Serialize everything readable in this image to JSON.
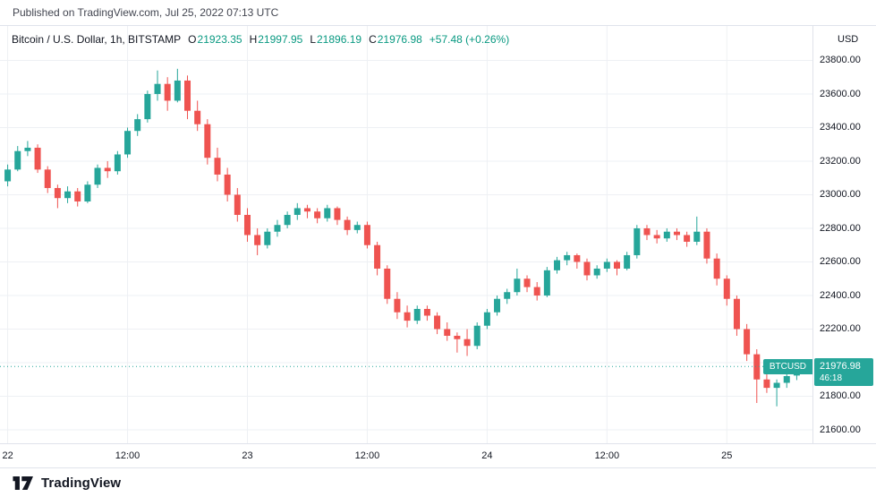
{
  "published": "Published on TradingView.com, Jul 25, 2022 07:13 UTC",
  "brand": "TradingView",
  "axis_currency": "USD",
  "legend": {
    "title": "Bitcoin / U.S. Dollar, 1h, BITSTAMP",
    "ohlc": [
      {
        "label": "O",
        "value": "21923.35"
      },
      {
        "label": "H",
        "value": "21997.95"
      },
      {
        "label": "L",
        "value": "21896.19"
      },
      {
        "label": "C",
        "value": "21976.98"
      }
    ],
    "change": "+57.48 (+0.26%)"
  },
  "price_label": {
    "symbol": "BTCUSD",
    "price": "21976.98",
    "countdown": "46:18"
  },
  "colors": {
    "up": "#26a69a",
    "down": "#ef5350",
    "up_text": "#089981",
    "grid": "#eef0f4",
    "border": "#e0e3eb",
    "text": "#131722"
  },
  "chart_data": {
    "type": "candlestick",
    "title": "Bitcoin / U.S. Dollar",
    "symbol": "BTCUSD",
    "exchange": "BITSTAMP",
    "interval": "1h",
    "last_price": 21976.98,
    "last_candle": {
      "open": 21923.35,
      "high": 21997.95,
      "low": 21896.19,
      "close": 21976.98,
      "change": 57.48,
      "change_pct": 0.26
    },
    "ylim": [
      21520,
      24005
    ],
    "y_ticks": [
      23800,
      23600,
      23400,
      23200,
      23000,
      22800,
      22600,
      22400,
      22200,
      22000,
      21800,
      21600
    ],
    "x_ticks": [
      {
        "index": 0,
        "label": "22",
        "major": true
      },
      {
        "index": 12,
        "label": "12:00",
        "major": false
      },
      {
        "index": 24,
        "label": "23",
        "major": true
      },
      {
        "index": 36,
        "label": "12:00",
        "major": false
      },
      {
        "index": 48,
        "label": "24",
        "major": true
      },
      {
        "index": 60,
        "label": "12:00",
        "major": false
      },
      {
        "index": 72,
        "label": "25",
        "major": true
      }
    ],
    "candles": [
      [
        23080,
        23180,
        23050,
        23150
      ],
      [
        23150,
        23290,
        23140,
        23260
      ],
      [
        23260,
        23320,
        23230,
        23280
      ],
      [
        23280,
        23300,
        23130,
        23150
      ],
      [
        23150,
        23170,
        23010,
        23040
      ],
      [
        23040,
        23060,
        22920,
        22980
      ],
      [
        22980,
        23050,
        22950,
        23020
      ],
      [
        23020,
        23040,
        22930,
        22960
      ],
      [
        22960,
        23080,
        22950,
        23060
      ],
      [
        23060,
        23180,
        23040,
        23160
      ],
      [
        23160,
        23200,
        23100,
        23140
      ],
      [
        23140,
        23260,
        23120,
        23240
      ],
      [
        23240,
        23400,
        23220,
        23380
      ],
      [
        23380,
        23480,
        23350,
        23450
      ],
      [
        23450,
        23620,
        23430,
        23600
      ],
      [
        23600,
        23740,
        23560,
        23660
      ],
      [
        23660,
        23700,
        23500,
        23560
      ],
      [
        23560,
        23750,
        23550,
        23680
      ],
      [
        23680,
        23710,
        23450,
        23500
      ],
      [
        23500,
        23560,
        23380,
        23420
      ],
      [
        23420,
        23450,
        23180,
        23220
      ],
      [
        23220,
        23280,
        23080,
        23120
      ],
      [
        23120,
        23160,
        22960,
        23000
      ],
      [
        23000,
        23040,
        22840,
        22880
      ],
      [
        22880,
        22920,
        22720,
        22760
      ],
      [
        22760,
        22800,
        22640,
        22700
      ],
      [
        22700,
        22800,
        22680,
        22780
      ],
      [
        22780,
        22850,
        22750,
        22820
      ],
      [
        22820,
        22900,
        22800,
        22880
      ],
      [
        22880,
        22950,
        22850,
        22920
      ],
      [
        22920,
        22940,
        22860,
        22900
      ],
      [
        22900,
        22920,
        22830,
        22860
      ],
      [
        22860,
        22940,
        22840,
        22920
      ],
      [
        22920,
        22930,
        22820,
        22850
      ],
      [
        22850,
        22870,
        22760,
        22790
      ],
      [
        22790,
        22840,
        22770,
        22820
      ],
      [
        22820,
        22840,
        22680,
        22700
      ],
      [
        22700,
        22720,
        22520,
        22560
      ],
      [
        22560,
        22580,
        22350,
        22380
      ],
      [
        22380,
        22420,
        22260,
        22300
      ],
      [
        22300,
        22340,
        22210,
        22250
      ],
      [
        22250,
        22340,
        22230,
        22320
      ],
      [
        22320,
        22340,
        22250,
        22280
      ],
      [
        22280,
        22300,
        22170,
        22200
      ],
      [
        22200,
        22240,
        22130,
        22160
      ],
      [
        22160,
        22180,
        22060,
        22140
      ],
      [
        22140,
        22200,
        22040,
        22100
      ],
      [
        22100,
        22240,
        22080,
        22220
      ],
      [
        22220,
        22320,
        22200,
        22300
      ],
      [
        22300,
        22400,
        22280,
        22380
      ],
      [
        22380,
        22440,
        22350,
        22420
      ],
      [
        22420,
        22560,
        22400,
        22500
      ],
      [
        22500,
        22520,
        22420,
        22450
      ],
      [
        22450,
        22480,
        22370,
        22400
      ],
      [
        22400,
        22570,
        22390,
        22550
      ],
      [
        22550,
        22630,
        22530,
        22610
      ],
      [
        22610,
        22660,
        22580,
        22640
      ],
      [
        22640,
        22650,
        22560,
        22600
      ],
      [
        22600,
        22620,
        22490,
        22520
      ],
      [
        22520,
        22580,
        22500,
        22560
      ],
      [
        22560,
        22620,
        22540,
        22600
      ],
      [
        22600,
        22610,
        22520,
        22560
      ],
      [
        22560,
        22660,
        22550,
        22640
      ],
      [
        22640,
        22820,
        22620,
        22800
      ],
      [
        22800,
        22820,
        22730,
        22760
      ],
      [
        22760,
        22790,
        22710,
        22740
      ],
      [
        22740,
        22800,
        22720,
        22780
      ],
      [
        22780,
        22800,
        22730,
        22760
      ],
      [
        22760,
        22780,
        22690,
        22720
      ],
      [
        22720,
        22870,
        22700,
        22780
      ],
      [
        22780,
        22800,
        22590,
        22620
      ],
      [
        22620,
        22650,
        22460,
        22500
      ],
      [
        22500,
        22520,
        22340,
        22380
      ],
      [
        22380,
        22400,
        22160,
        22200
      ],
      [
        22200,
        22230,
        22010,
        22050
      ],
      [
        22050,
        22080,
        21760,
        21900
      ],
      [
        21900,
        21940,
        21820,
        21850
      ],
      [
        21850,
        21900,
        21740,
        21880
      ],
      [
        21880,
        21950,
        21850,
        21920
      ],
      [
        21923.35,
        21997.95,
        21896.19,
        21976.98
      ]
    ]
  }
}
